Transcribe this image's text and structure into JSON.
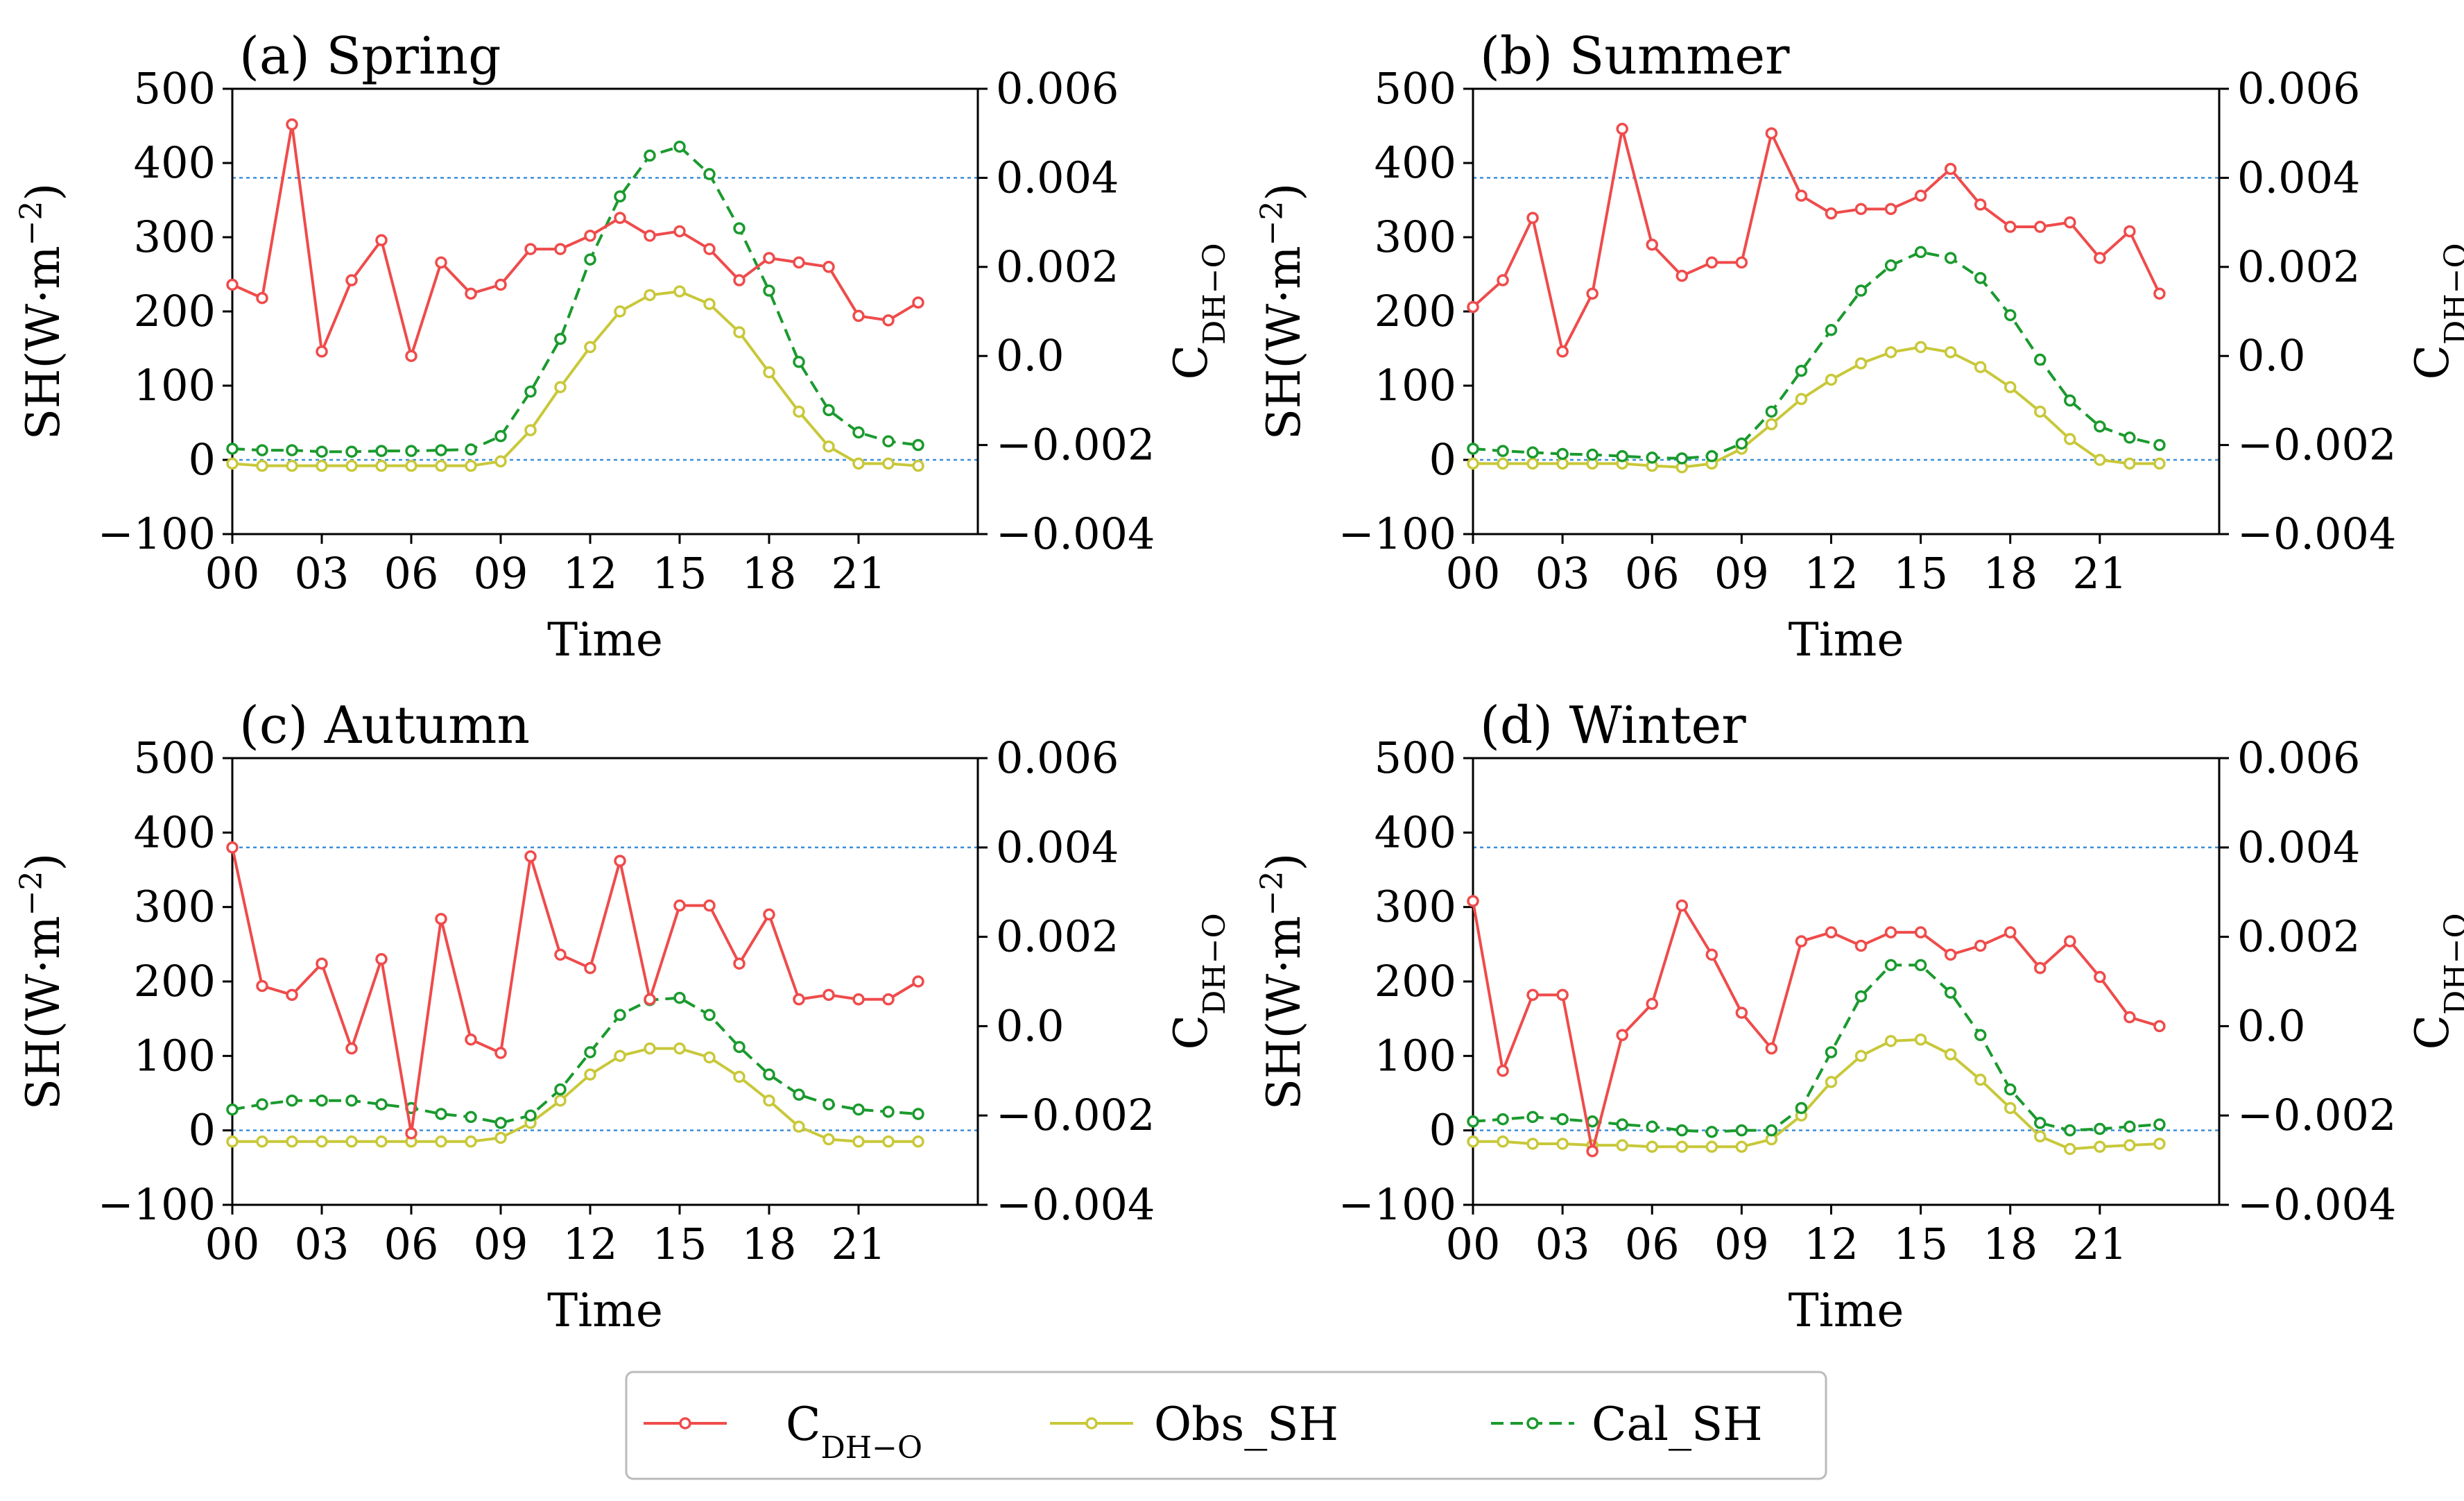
{
  "chart_data": [
    {
      "type": "line",
      "title": "(a) Spring",
      "xlabel": "Time",
      "ylabel_left": {
        "base": "SH(W·m",
        "sup": "−2",
        "end": ")"
      },
      "ylabel_right": {
        "base": "C",
        "sub": "DH−O"
      },
      "x": [
        0,
        1,
        2,
        3,
        4,
        5,
        6,
        7,
        8,
        9,
        10,
        11,
        12,
        13,
        14,
        15,
        16,
        17,
        18,
        19,
        20,
        21,
        22,
        23
      ],
      "xticks": [
        "00",
        "03",
        "06",
        "09",
        "12",
        "15",
        "18",
        "21"
      ],
      "xtick_values": [
        0,
        3,
        6,
        9,
        12,
        15,
        18,
        21
      ],
      "ylim_left": [
        -100,
        500
      ],
      "yticks_left": [
        "500",
        "400",
        "300",
        "200",
        "100",
        "0",
        "−100"
      ],
      "ylim_right": [
        -0.004,
        0.006
      ],
      "yticks_right": [
        "0.006",
        "0.004",
        "0.002",
        "0.0",
        "−0.002",
        "−0.004"
      ],
      "reference_lines_left": [
        380,
        0
      ],
      "series": [
        {
          "name": "C_DH-O",
          "axis": "right",
          "values": [
            0.0016,
            0.0013,
            0.0052,
            0.0001,
            0.0017,
            0.0026,
            0.0,
            0.0021,
            0.0014,
            0.0016,
            0.0024,
            0.0024,
            0.0027,
            0.0031,
            0.0027,
            0.0028,
            0.0024,
            0.0017,
            0.0022,
            0.0021,
            0.002,
            0.0009,
            0.0008,
            0.0012
          ]
        },
        {
          "name": "Obs_SH",
          "axis": "left",
          "values": [
            -5,
            -8,
            -8,
            -8,
            -8,
            -8,
            -8,
            -8,
            -8,
            -2,
            40,
            98,
            152,
            200,
            222,
            227,
            210,
            172,
            118,
            65,
            18,
            -5,
            -5,
            -8
          ]
        },
        {
          "name": "Cal_SH",
          "axis": "left",
          "values": [
            15,
            13,
            13,
            11,
            11,
            12,
            12,
            13,
            14,
            32,
            92,
            163,
            270,
            355,
            410,
            422,
            385,
            312,
            228,
            132,
            67,
            37,
            25,
            20
          ]
        }
      ]
    },
    {
      "type": "line",
      "title": "(b) Summer",
      "xlabel": "Time",
      "ylabel_left": {
        "base": "SH(W·m",
        "sup": "−2",
        "end": ")"
      },
      "ylabel_right": {
        "base": "C",
        "sub": "DH−O"
      },
      "x": [
        0,
        1,
        2,
        3,
        4,
        5,
        6,
        7,
        8,
        9,
        10,
        11,
        12,
        13,
        14,
        15,
        16,
        17,
        18,
        19,
        20,
        21,
        22,
        23
      ],
      "xticks": [
        "00",
        "03",
        "06",
        "09",
        "12",
        "15",
        "18",
        "21"
      ],
      "xtick_values": [
        0,
        3,
        6,
        9,
        12,
        15,
        18,
        21
      ],
      "ylim_left": [
        -100,
        500
      ],
      "yticks_left": [
        "500",
        "400",
        "300",
        "200",
        "100",
        "0",
        "−100"
      ],
      "ylim_right": [
        -0.004,
        0.006
      ],
      "yticks_right": [
        "0.006",
        "0.004",
        "0.002",
        "0.0",
        "−0.002",
        "−0.004"
      ],
      "reference_lines_left": [
        380,
        0
      ],
      "series": [
        {
          "name": "C_DH-O",
          "axis": "right",
          "values": [
            0.0011,
            0.0017,
            0.0031,
            0.0001,
            0.0014,
            0.0051,
            0.0025,
            0.0018,
            0.0021,
            0.0021,
            0.005,
            0.0036,
            0.0032,
            0.0033,
            0.0033,
            0.0036,
            0.0042,
            0.0034,
            0.0029,
            0.0029,
            0.003,
            0.0022,
            0.0028,
            0.0014
          ]
        },
        {
          "name": "Obs_SH",
          "axis": "left",
          "values": [
            -5,
            -5,
            -5,
            -5,
            -5,
            -5,
            -8,
            -10,
            -5,
            15,
            48,
            82,
            108,
            130,
            145,
            152,
            145,
            125,
            98,
            65,
            28,
            0,
            -5,
            -5
          ]
        },
        {
          "name": "Cal_SH",
          "axis": "left",
          "values": [
            15,
            12,
            10,
            8,
            7,
            5,
            3,
            2,
            5,
            22,
            65,
            120,
            175,
            228,
            262,
            280,
            272,
            245,
            195,
            135,
            80,
            45,
            30,
            20
          ]
        }
      ]
    },
    {
      "type": "line",
      "title": "(c) Autumn",
      "xlabel": "Time",
      "ylabel_left": {
        "base": "SH(W·m",
        "sup": "−2",
        "end": ")"
      },
      "ylabel_right": {
        "base": "C",
        "sub": "DH−O"
      },
      "x": [
        0,
        1,
        2,
        3,
        4,
        5,
        6,
        7,
        8,
        9,
        10,
        11,
        12,
        13,
        14,
        15,
        16,
        17,
        18,
        19,
        20,
        21,
        22,
        23
      ],
      "xticks": [
        "00",
        "03",
        "06",
        "09",
        "12",
        "15",
        "18",
        "21"
      ],
      "xtick_values": [
        0,
        3,
        6,
        9,
        12,
        15,
        18,
        21
      ],
      "ylim_left": [
        -100,
        500
      ],
      "yticks_left": [
        "500",
        "400",
        "300",
        "200",
        "100",
        "0",
        "−100"
      ],
      "ylim_right": [
        -0.004,
        0.006
      ],
      "yticks_right": [
        "0.006",
        "0.004",
        "0.002",
        "0.0",
        "−0.002",
        "−0.004"
      ],
      "reference_lines_left": [
        380,
        0
      ],
      "series": [
        {
          "name": "C_DH-O",
          "axis": "right",
          "values": [
            0.004,
            0.0009,
            0.0007,
            0.0014,
            -0.0005,
            0.0015,
            -0.0024,
            0.0024,
            -0.0003,
            -0.0006,
            0.0038,
            0.0016,
            0.0013,
            0.0037,
            0.0006,
            0.0027,
            0.0027,
            0.0014,
            0.0025,
            0.0006,
            0.0007,
            0.0006,
            0.0006,
            0.001
          ]
        },
        {
          "name": "Obs_SH",
          "axis": "left",
          "values": [
            -15,
            -15,
            -15,
            -15,
            -15,
            -15,
            -15,
            -15,
            -15,
            -10,
            10,
            40,
            75,
            100,
            110,
            110,
            98,
            72,
            40,
            5,
            -12,
            -15,
            -15,
            -15
          ]
        },
        {
          "name": "Cal_SH",
          "axis": "left",
          "values": [
            28,
            35,
            40,
            40,
            40,
            35,
            30,
            22,
            18,
            10,
            20,
            55,
            105,
            155,
            175,
            178,
            155,
            112,
            75,
            48,
            35,
            28,
            25,
            22
          ]
        }
      ]
    },
    {
      "type": "line",
      "title": "(d) Winter",
      "xlabel": "Time",
      "ylabel_left": {
        "base": "SH(W·m",
        "sup": "−2",
        "end": ")"
      },
      "ylabel_right": {
        "base": "C",
        "sub": "DH−O"
      },
      "x": [
        0,
        1,
        2,
        3,
        4,
        5,
        6,
        7,
        8,
        9,
        10,
        11,
        12,
        13,
        14,
        15,
        16,
        17,
        18,
        19,
        20,
        21,
        22,
        23
      ],
      "xticks": [
        "00",
        "03",
        "06",
        "09",
        "12",
        "15",
        "18",
        "21"
      ],
      "xtick_values": [
        0,
        3,
        6,
        9,
        12,
        15,
        18,
        21
      ],
      "ylim_left": [
        -100,
        500
      ],
      "yticks_left": [
        "500",
        "400",
        "300",
        "200",
        "100",
        "0",
        "−100"
      ],
      "ylim_right": [
        -0.004,
        0.006
      ],
      "yticks_right": [
        "0.006",
        "0.004",
        "0.002",
        "0.0",
        "−0.002",
        "−0.004"
      ],
      "reference_lines_left": [
        380,
        0
      ],
      "series": [
        {
          "name": "C_DH-O",
          "axis": "right",
          "values": [
            0.0028,
            -0.001,
            0.0007,
            0.0007,
            -0.0028,
            -0.0002,
            0.0005,
            0.0027,
            0.0016,
            0.0003,
            -0.0005,
            0.0019,
            0.0021,
            0.0018,
            0.0021,
            0.0021,
            0.0016,
            0.0018,
            0.0021,
            0.0013,
            0.0019,
            0.0011,
            0.0002,
            0.0
          ]
        },
        {
          "name": "Obs_SH",
          "axis": "left",
          "values": [
            -15,
            -15,
            -18,
            -18,
            -20,
            -20,
            -22,
            -22,
            -22,
            -22,
            -12,
            20,
            65,
            100,
            120,
            122,
            102,
            68,
            30,
            -8,
            -25,
            -22,
            -20,
            -18
          ]
        },
        {
          "name": "Cal_SH",
          "axis": "left",
          "values": [
            12,
            15,
            18,
            15,
            12,
            8,
            5,
            0,
            -2,
            0,
            0,
            30,
            105,
            180,
            222,
            222,
            185,
            128,
            55,
            10,
            0,
            2,
            5,
            8
          ]
        }
      ]
    }
  ],
  "legend": {
    "entries": [
      {
        "name": "C_DH-O",
        "label_base": "C",
        "label_sub": "DH−O"
      },
      {
        "name": "Obs_SH",
        "label": "Obs_SH"
      },
      {
        "name": "Cal_SH",
        "label": "Cal_SH"
      }
    ],
    "placement": "bottom-center"
  },
  "colors": {
    "C_DH-O": "#ef4b4b",
    "Obs_SH": "#c8c83a",
    "Cal_SH": "#1a9a2e",
    "reference_line": "#3c8fd8"
  }
}
